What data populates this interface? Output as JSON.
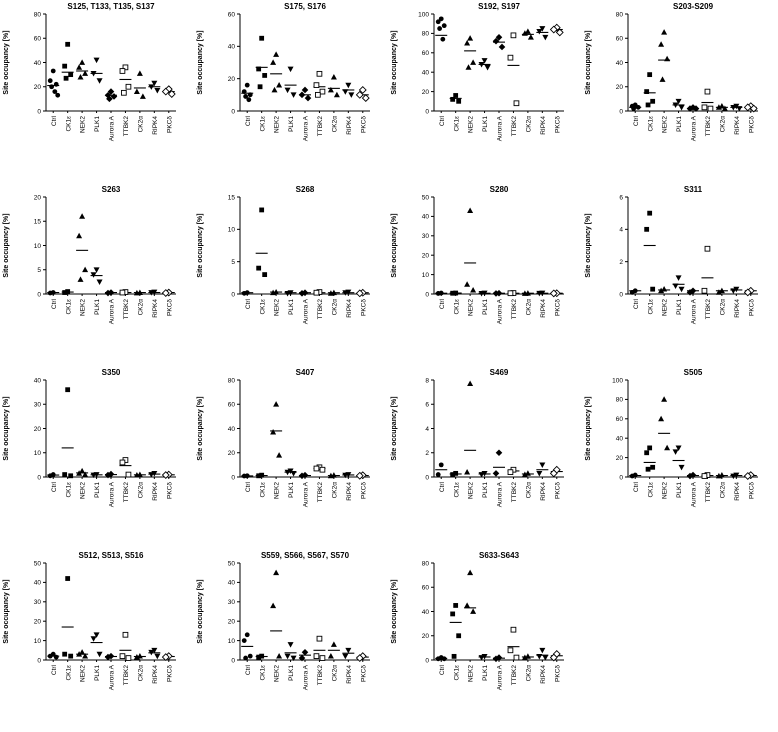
{
  "chart_shared": {
    "ylabel": "Site occupancy [%]",
    "categories": [
      "Ctrl",
      "CK1ε",
      "NEK2",
      "PLK1",
      "Aurora A",
      "TTBK2",
      "CK2α",
      "RIPK4",
      "PKCδ"
    ],
    "markers": [
      "circle",
      "square",
      "triangle-up",
      "triangle-down",
      "diamond",
      "square-open",
      "triangle-up",
      "triangle-down",
      "diamond-open"
    ],
    "colors": {
      "fg": "#000000",
      "bg": "#ffffff"
    }
  },
  "chart_data": [
    {
      "type": "scatter",
      "title": "S125, T133, T135, S137",
      "ylim": [
        0,
        80
      ],
      "yticks": [
        0,
        20,
        40,
        60,
        80
      ],
      "points": [
        [
          33,
          25,
          22,
          20,
          16,
          13
        ],
        [
          55,
          37,
          30,
          27
        ],
        [
          40,
          36,
          31,
          28
        ],
        [
          42,
          31,
          25
        ],
        [
          16,
          13,
          12,
          10
        ],
        [
          36,
          33,
          20,
          15
        ],
        [
          31,
          16,
          12
        ],
        [
          23,
          20,
          17
        ],
        [
          18,
          16,
          14
        ]
      ],
      "means": [
        21,
        32,
        33,
        31,
        13,
        26,
        19,
        20,
        16
      ]
    },
    {
      "type": "scatter",
      "title": "S175, S176",
      "ylim": [
        0,
        60
      ],
      "yticks": [
        0,
        20,
        40,
        60
      ],
      "points": [
        [
          16,
          12,
          10,
          9,
          7
        ],
        [
          45,
          26,
          22,
          15
        ],
        [
          35,
          30,
          16,
          13
        ],
        [
          26,
          13,
          10
        ],
        [
          13,
          10,
          8
        ],
        [
          23,
          16,
          12,
          10
        ],
        [
          21,
          13,
          10
        ],
        [
          16,
          12,
          10
        ],
        [
          13,
          10,
          8
        ]
      ],
      "means": [
        11,
        27,
        23,
        16,
        10,
        15,
        14,
        13,
        10
      ]
    },
    {
      "type": "scatter",
      "title": "S192, S197",
      "ylim": [
        0,
        100
      ],
      "yticks": [
        0,
        20,
        40,
        60,
        80,
        100
      ],
      "points": [
        [
          95,
          92,
          88,
          85,
          74
        ],
        [
          16,
          12,
          10
        ],
        [
          75,
          70,
          50,
          45
        ],
        [
          52,
          48,
          45
        ],
        [
          76,
          72,
          66
        ],
        [
          78,
          55,
          8
        ],
        [
          82,
          80,
          76
        ],
        [
          85,
          82,
          76
        ],
        [
          86,
          84,
          81
        ]
      ],
      "means": [
        78,
        13,
        62,
        48,
        71,
        47,
        79,
        81,
        84
      ]
    },
    {
      "type": "scatter",
      "title": "S203-S209",
      "ylim": [
        0,
        80
      ],
      "yticks": [
        0,
        20,
        40,
        60,
        80
      ],
      "points": [
        [
          5,
          4,
          3,
          2
        ],
        [
          30,
          16,
          8,
          5
        ],
        [
          65,
          55,
          43,
          26
        ],
        [
          8,
          5,
          3
        ],
        [
          3,
          2,
          2
        ],
        [
          16,
          3,
          2
        ],
        [
          4,
          3,
          2
        ],
        [
          4,
          3,
          2
        ],
        [
          4,
          3,
          2
        ]
      ],
      "means": [
        3,
        15,
        42,
        5,
        2,
        7,
        3,
        3,
        3
      ]
    },
    {
      "type": "scatter",
      "title": "S263",
      "ylim": [
        0,
        20
      ],
      "yticks": [
        0,
        5,
        10,
        15,
        20
      ],
      "points": [
        [
          0.3,
          0.2
        ],
        [
          0.5,
          0.3
        ],
        [
          16,
          12,
          5,
          3
        ],
        [
          5,
          4,
          2.5
        ],
        [
          0.3,
          0.2
        ],
        [
          0.4,
          0.3
        ],
        [
          0.3,
          0.2
        ],
        [
          0.4,
          0.3
        ],
        [
          0.3,
          0.2
        ]
      ],
      "means": [
        0.3,
        0.4,
        9,
        3.8,
        0.3,
        0.3,
        0.3,
        0.3,
        0.3
      ]
    },
    {
      "type": "scatter",
      "title": "S268",
      "ylim": [
        0,
        15
      ],
      "yticks": [
        0,
        5,
        10,
        15
      ],
      "points": [
        [
          0.2,
          0.1
        ],
        [
          13,
          4,
          3
        ],
        [
          0.3,
          0.2
        ],
        [
          0.2,
          0.1
        ],
        [
          0.2,
          0.1
        ],
        [
          0.3,
          0.2
        ],
        [
          0.2,
          0.1
        ],
        [
          0.3,
          0.2
        ],
        [
          0.2,
          0.1
        ]
      ],
      "means": [
        0.2,
        6.3,
        0.3,
        0.2,
        0.2,
        0.2,
        0.2,
        0.2,
        0.2
      ]
    },
    {
      "type": "scatter",
      "title": "S280",
      "ylim": [
        0,
        50
      ],
      "yticks": [
        0,
        10,
        20,
        30,
        40,
        50
      ],
      "points": [
        [
          0.5,
          0.3
        ],
        [
          0.5,
          0.4
        ],
        [
          43,
          5,
          2
        ],
        [
          0.5,
          0.3
        ],
        [
          0.4,
          0.3
        ],
        [
          0.5,
          0.4
        ],
        [
          0.4,
          0.3
        ],
        [
          0.5,
          0.4
        ],
        [
          0.4,
          0.3
        ]
      ],
      "means": [
        0.4,
        0.5,
        16,
        0.4,
        0.4,
        0.4,
        0.4,
        0.4,
        0.4
      ]
    },
    {
      "type": "scatter",
      "title": "S311",
      "ylim": [
        0,
        6
      ],
      "yticks": [
        0,
        2,
        4,
        6
      ],
      "points": [
        [
          0.2,
          0.1
        ],
        [
          5,
          4,
          0.3
        ],
        [
          0.3,
          0.2
        ],
        [
          1,
          0.5,
          0.3
        ],
        [
          0.2,
          0.1
        ],
        [
          2.8,
          0.2
        ],
        [
          0.2,
          0.1
        ],
        [
          0.3,
          0.2
        ],
        [
          0.2,
          0.1
        ]
      ],
      "means": [
        0.2,
        3,
        0.25,
        0.6,
        0.2,
        1,
        0.2,
        0.25,
        0.2
      ]
    },
    {
      "type": "scatter",
      "title": "S350",
      "ylim": [
        0,
        40
      ],
      "yticks": [
        0,
        10,
        20,
        30,
        40
      ],
      "points": [
        [
          1,
          0.5
        ],
        [
          36,
          1,
          0.5
        ],
        [
          2.5,
          1.5,
          1
        ],
        [
          1,
          0.8
        ],
        [
          1.2,
          0.8
        ],
        [
          7,
          6,
          1
        ],
        [
          1,
          0.8
        ],
        [
          1.5,
          1
        ],
        [
          1,
          0.8
        ]
      ],
      "means": [
        0.8,
        12,
        1.7,
        0.9,
        1,
        4.7,
        0.9,
        1.2,
        0.9
      ]
    },
    {
      "type": "scatter",
      "title": "S407",
      "ylim": [
        0,
        80
      ],
      "yticks": [
        0,
        20,
        40,
        60,
        80
      ],
      "points": [
        [
          1,
          0.8
        ],
        [
          1.5,
          1
        ],
        [
          60,
          37,
          18
        ],
        [
          5,
          4,
          3
        ],
        [
          1.5,
          1
        ],
        [
          8,
          7,
          6
        ],
        [
          1.5,
          1
        ],
        [
          2,
          1.5
        ],
        [
          1.5,
          1
        ]
      ],
      "means": [
        0.9,
        1.2,
        38,
        4,
        1.2,
        7,
        1.2,
        1.7,
        1.2
      ]
    },
    {
      "type": "scatter",
      "title": "S469",
      "ylim": [
        0,
        8
      ],
      "yticks": [
        0,
        2,
        4,
        6,
        8
      ],
      "points": [
        [
          1,
          0.2
        ],
        [
          0.3,
          0.2
        ],
        [
          7.7,
          0.4
        ],
        [
          0.3,
          0.2
        ],
        [
          2,
          0.3
        ],
        [
          0.6,
          0.4
        ],
        [
          0.3,
          0.2
        ],
        [
          1,
          0.3
        ],
        [
          0.6,
          0.3
        ]
      ],
      "means": [
        0.6,
        0.25,
        2.2,
        0.25,
        0.8,
        0.5,
        0.25,
        0.6,
        0.45
      ]
    },
    {
      "type": "scatter",
      "title": "S505",
      "ylim": [
        0,
        100
      ],
      "yticks": [
        0,
        20,
        40,
        60,
        80,
        100
      ],
      "points": [
        [
          2,
          1
        ],
        [
          30,
          25,
          10,
          8
        ],
        [
          80,
          60,
          30
        ],
        [
          30,
          26,
          10
        ],
        [
          2,
          1
        ],
        [
          2,
          1
        ],
        [
          2,
          1
        ],
        [
          2,
          1
        ],
        [
          2,
          1
        ]
      ],
      "means": [
        1.5,
        15,
        45,
        17,
        1.5,
        1.5,
        1.5,
        1.5,
        1.5
      ]
    },
    {
      "type": "scatter",
      "title": "S512, S513, S516",
      "ylim": [
        0,
        50
      ],
      "yticks": [
        0,
        10,
        20,
        30,
        40,
        50
      ],
      "points": [
        [
          3,
          2,
          1.5
        ],
        [
          42,
          3,
          2
        ],
        [
          4,
          3,
          2
        ],
        [
          13,
          11,
          3
        ],
        [
          2,
          1.5
        ],
        [
          13,
          2,
          1
        ],
        [
          2,
          1.5
        ],
        [
          5,
          4,
          2
        ],
        [
          2,
          1.5
        ]
      ],
      "means": [
        2,
        17,
        3,
        9,
        1.8,
        5,
        1.8,
        3.7,
        1.8
      ]
    },
    {
      "type": "scatter",
      "title": "S559, S566, S567, S570",
      "ylim": [
        0,
        50
      ],
      "yticks": [
        0,
        10,
        20,
        30,
        40,
        50
      ],
      "points": [
        [
          13,
          10,
          2,
          1
        ],
        [
          2,
          1.5
        ],
        [
          45,
          28,
          2
        ],
        [
          8,
          2,
          1
        ],
        [
          4,
          1
        ],
        [
          11,
          2,
          1
        ],
        [
          8,
          2
        ],
        [
          5,
          2
        ],
        [
          2,
          1
        ]
      ],
      "means": [
        7,
        1.8,
        15,
        3.7,
        2.5,
        5,
        5,
        3.5,
        1.5
      ]
    },
    {
      "type": "scatter",
      "title": "S633-S643",
      "ylim": [
        0,
        80
      ],
      "yticks": [
        0,
        20,
        40,
        60,
        80
      ],
      "points": [
        [
          2,
          1,
          1
        ],
        [
          45,
          38,
          20,
          3
        ],
        [
          72,
          45,
          40
        ],
        [
          3,
          2
        ],
        [
          2,
          1
        ],
        [
          25,
          8,
          2
        ],
        [
          3,
          2
        ],
        [
          8,
          3,
          2
        ],
        [
          5,
          2
        ]
      ],
      "means": [
        1.3,
        31,
        43,
        2.5,
        1.5,
        11,
        2.5,
        4,
        3.5
      ]
    }
  ]
}
